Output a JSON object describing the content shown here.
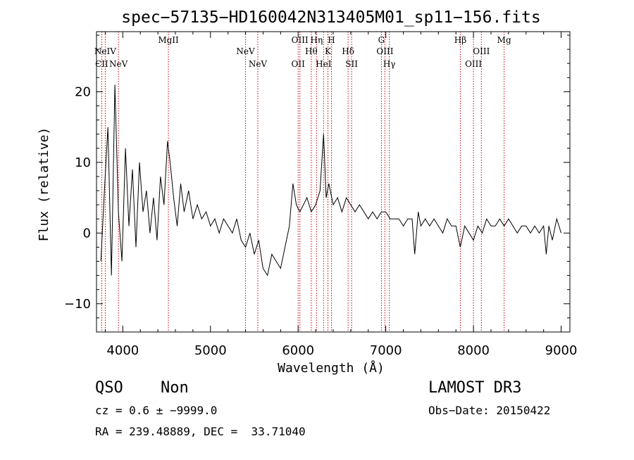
{
  "chart_data": {
    "type": "line",
    "title": "spec−57135−HD160042N313405M01_sp11−156.fits",
    "xlabel": "Wavelength (Å)",
    "ylabel": "Flux (relative)",
    "xlim": [
      3700,
      9100
    ],
    "ylim": [
      -14,
      28.5
    ],
    "x_ticks": [
      4000,
      5000,
      6000,
      7000,
      8000,
      9000
    ],
    "x_tick_labels": [
      "4000",
      "5000",
      "6000",
      "7000",
      "8000",
      "9000"
    ],
    "y_ticks": [
      -10,
      0,
      10,
      20
    ],
    "y_tick_labels": [
      "−10",
      "0",
      "10",
      "20"
    ],
    "line_color": "#000000",
    "marker_color": "#cc0000",
    "series": [
      {
        "name": "flux",
        "x": [
          3750,
          3790,
          3830,
          3870,
          3910,
          3950,
          3990,
          4030,
          4070,
          4110,
          4150,
          4190,
          4230,
          4270,
          4310,
          4350,
          4390,
          4430,
          4470,
          4510,
          4540,
          4580,
          4620,
          4660,
          4700,
          4750,
          4800,
          4850,
          4900,
          4950,
          5000,
          5050,
          5100,
          5150,
          5200,
          5250,
          5300,
          5350,
          5400,
          5450,
          5500,
          5550,
          5600,
          5650,
          5700,
          5750,
          5800,
          5850,
          5900,
          5940,
          5980,
          6020,
          6060,
          6100,
          6150,
          6200,
          6250,
          6290,
          6320,
          6350,
          6400,
          6450,
          6500,
          6550,
          6600,
          6650,
          6700,
          6750,
          6800,
          6850,
          6900,
          6950,
          7000,
          7050,
          7100,
          7150,
          7200,
          7250,
          7300,
          7330,
          7370,
          7400,
          7450,
          7500,
          7550,
          7600,
          7650,
          7700,
          7750,
          7800,
          7850,
          7900,
          7950,
          8000,
          8050,
          8100,
          8150,
          8200,
          8250,
          8300,
          8350,
          8400,
          8450,
          8500,
          8550,
          8600,
          8650,
          8700,
          8750,
          8800,
          8830,
          8860,
          8900,
          8950,
          9000
        ],
        "y": [
          -4,
          6,
          15,
          -6,
          21,
          3,
          -4,
          12,
          1,
          9,
          -2,
          10,
          3,
          6,
          0,
          5,
          -1,
          8,
          4,
          13,
          10,
          5,
          1,
          7,
          3,
          6,
          2,
          4,
          2,
          3,
          1,
          2,
          0,
          2,
          1,
          0,
          2,
          -1,
          -2,
          0,
          -3,
          -1,
          -5,
          -6,
          -3,
          -4,
          -5,
          -2,
          1,
          7,
          4,
          3,
          4,
          5,
          3,
          4,
          6,
          14,
          5,
          7,
          4,
          5,
          3,
          5,
          4,
          3,
          4,
          3,
          2,
          3,
          2,
          3,
          3,
          2,
          2,
          2,
          1,
          2,
          2,
          -3,
          3,
          1,
          2,
          1,
          2,
          1,
          0,
          2,
          1,
          1,
          -2,
          1,
          0,
          -1,
          1,
          0,
          2,
          1,
          1,
          2,
          1,
          2,
          1,
          0,
          1,
          1,
          0,
          1,
          0,
          1,
          -3,
          1,
          -1,
          2,
          0
        ]
      }
    ],
    "lines": [
      {
        "label": "CII",
        "wavelength": 3760,
        "row": 3
      },
      {
        "label": "NeIV",
        "wavelength": 3800,
        "row": 1
      },
      {
        "label": "NeV",
        "wavelength": 3950,
        "row": 3
      },
      {
        "label": "MgII",
        "wavelength": 4520,
        "row": 0
      },
      {
        "label": "NeV",
        "wavelength": 5400,
        "row": 1
      },
      {
        "label": "NeV",
        "wavelength": 5540,
        "row": 3
      },
      {
        "label": "OII",
        "wavelength": 6000,
        "row": 3
      },
      {
        "label": "OIII",
        "wavelength": 6020,
        "row": 0
      },
      {
        "label": "Hθ",
        "wavelength": 6150,
        "row": 1
      },
      {
        "label": "Hη",
        "wavelength": 6210,
        "row": 0
      },
      {
        "label": "HeI",
        "wavelength": 6290,
        "row": 3
      },
      {
        "label": "K",
        "wavelength": 6340,
        "row": 1
      },
      {
        "label": "H",
        "wavelength": 6380,
        "row": 0
      },
      {
        "label": "Hδ",
        "wavelength": 6570,
        "row": 1
      },
      {
        "label": "SII",
        "wavelength": 6610,
        "row": 3
      },
      {
        "label": "G",
        "wavelength": 6950,
        "row": 0
      },
      {
        "label": "OIII",
        "wavelength": 6990,
        "row": 1
      },
      {
        "label": "Hγ",
        "wavelength": 7040,
        "row": 3
      },
      {
        "label": "Hβ",
        "wavelength": 7850,
        "row": 0
      },
      {
        "label": "OIII",
        "wavelength": 8000,
        "row": 3
      },
      {
        "label": "OIII",
        "wavelength": 8090,
        "row": 1
      },
      {
        "label": "Mg",
        "wavelength": 8350,
        "row": 0
      }
    ]
  },
  "info": {
    "class": "QSO",
    "subclass": "Non",
    "survey": "LAMOST DR3",
    "cz_line": "cz = 0.6 ± −9999.0",
    "obs_date_line": "Obs−Date: 20150422",
    "radec_line": "RA = 239.48889, DEC =  33.71040"
  }
}
